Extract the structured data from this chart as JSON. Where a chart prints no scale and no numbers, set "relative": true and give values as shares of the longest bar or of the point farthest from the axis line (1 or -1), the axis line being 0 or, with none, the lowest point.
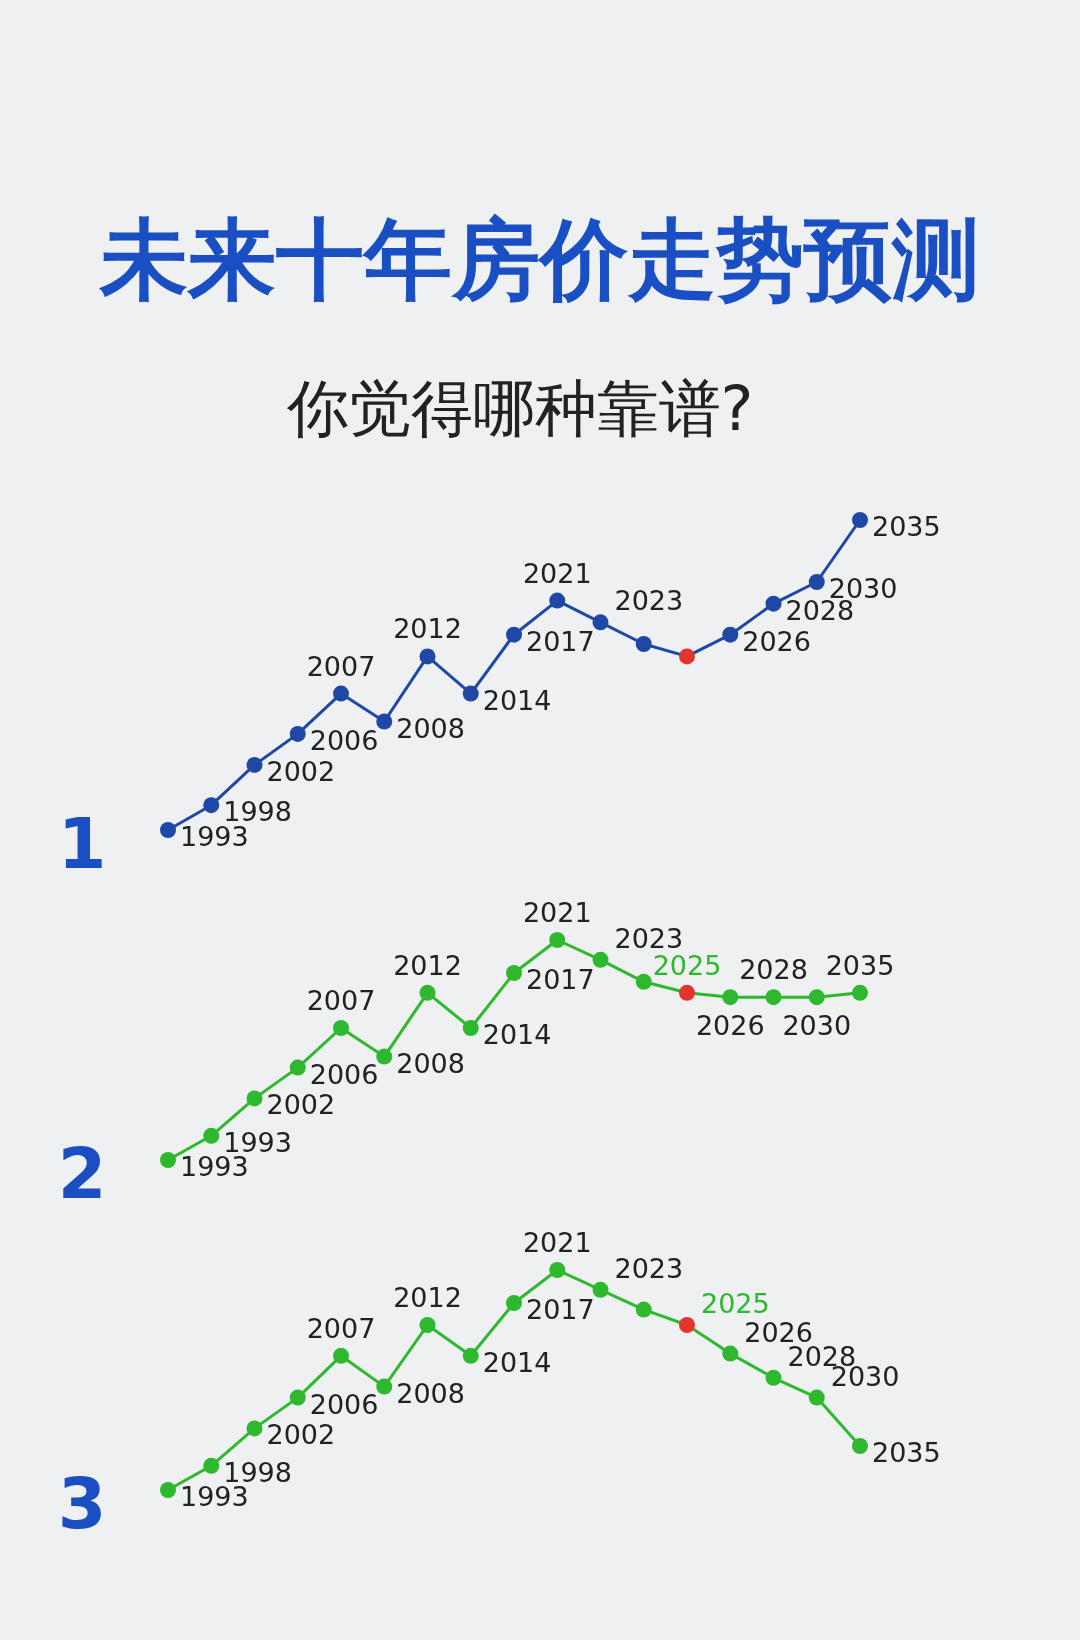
{
  "chart_data": [
    {
      "type": "other",
      "title": "未来十年房价走势预测",
      "subtitle": "你觉得哪种靠谱?"
    },
    {
      "type": "line",
      "title": "1",
      "relative": true,
      "marker": "circle",
      "categories": [
        null,
        null,
        null,
        null,
        null,
        null,
        null,
        null,
        null,
        null,
        null,
        null,
        null,
        null,
        null,
        null,
        null
      ],
      "series": [
        {
          "color": "#1e47a6",
          "colors": [
            "#1e47a6",
            "#1e47a6",
            "#1e47a6",
            "#1e47a6",
            "#1e47a6",
            "#1e47a6",
            "#1e47a6",
            "#1e47a6",
            "#1e47a6",
            "#1e47a6",
            "#1e47a6",
            "#1e47a6",
            "#e3352b",
            "#1e47a6",
            "#1e47a6",
            "#1e47a6",
            "#1e47a6"
          ],
          "values": [
            0,
            0.08,
            0.21,
            0.31,
            0.44,
            0.35,
            0.56,
            0.44,
            0.63,
            0.74,
            0.67,
            0.6,
            0.56,
            0.63,
            0.73,
            0.8,
            1
          ]
        }
      ],
      "annotations": [
        "1993",
        "1998",
        "2002",
        "2006",
        "2007",
        "2008",
        "2012",
        "2014",
        "2017",
        "2021",
        "2023",
        null,
        null,
        "2026",
        "2028",
        "2030",
        "2035"
      ]
    },
    {
      "type": "line",
      "title": "2",
      "relative": true,
      "marker": "circle",
      "categories": [
        null,
        null,
        null,
        null,
        null,
        null,
        null,
        null,
        null,
        null,
        null,
        null,
        null,
        null,
        null,
        null,
        null
      ],
      "series": [
        {
          "color": "#2eb82e",
          "colors": [
            "#2eb82e",
            "#2eb82e",
            "#2eb82e",
            "#2eb82e",
            "#2eb82e",
            "#2eb82e",
            "#2eb82e",
            "#2eb82e",
            "#2eb82e",
            "#2eb82e",
            "#2eb82e",
            "#2eb82e",
            "#e3352b",
            "#2eb82e",
            "#2eb82e",
            "#2eb82e",
            "#2eb82e"
          ],
          "values": [
            0,
            0.11,
            0.28,
            0.42,
            0.6,
            0.47,
            0.76,
            0.6,
            0.85,
            1,
            0.91,
            0.81,
            0.76,
            0.74,
            0.74,
            0.74,
            0.76
          ]
        }
      ],
      "annotations": [
        "1993",
        "1993",
        "2002",
        "2006",
        "2007",
        "2008",
        "2012",
        "2014",
        "2017",
        "2021",
        "2023",
        null,
        "2025",
        "2026",
        "2028",
        "2030",
        "2035"
      ]
    },
    {
      "type": "line",
      "title": "3",
      "relative": true,
      "marker": "circle",
      "categories": [
        null,
        null,
        null,
        null,
        null,
        null,
        null,
        null,
        null,
        null,
        null,
        null,
        null,
        null,
        null,
        null,
        null
      ],
      "series": [
        {
          "color": "#2eb82e",
          "colors": [
            "#2eb82e",
            "#2eb82e",
            "#2eb82e",
            "#2eb82e",
            "#2eb82e",
            "#2eb82e",
            "#2eb82e",
            "#2eb82e",
            "#2eb82e",
            "#2eb82e",
            "#2eb82e",
            "#2eb82e",
            "#e3352b",
            "#2eb82e",
            "#2eb82e",
            "#2eb82e",
            "#2eb82e"
          ],
          "values": [
            0,
            0.11,
            0.28,
            0.42,
            0.61,
            0.47,
            0.75,
            0.61,
            0.85,
            1,
            0.91,
            0.82,
            0.75,
            0.62,
            0.51,
            0.42,
            0.2
          ]
        }
      ],
      "annotations": [
        "1993",
        "1998",
        "2002",
        "2006",
        "2007",
        "2008",
        "2012",
        "2014",
        "2017",
        "2021",
        "2023",
        null,
        "2025",
        "2026",
        "2028",
        "2030",
        "2035"
      ]
    }
  ]
}
